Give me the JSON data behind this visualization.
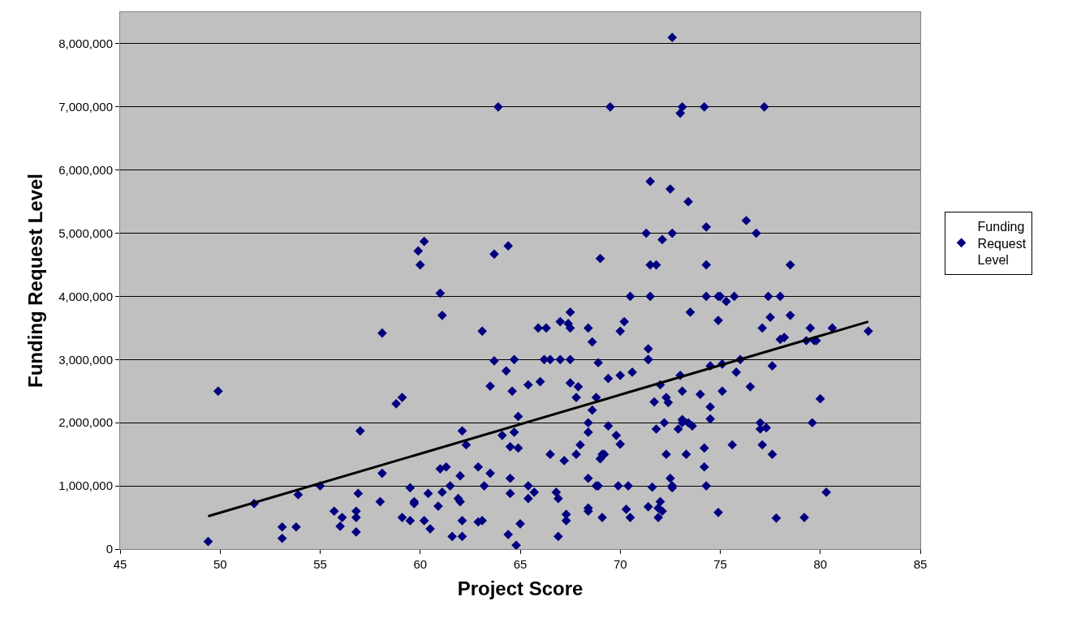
{
  "chart_data": {
    "type": "scatter",
    "xlabel": "Project Score",
    "ylabel": "Funding Request Level",
    "xlim": [
      45,
      85
    ],
    "xticks": [
      45,
      50,
      55,
      60,
      65,
      70,
      75,
      80,
      85
    ],
    "ylim": [
      0,
      8500000
    ],
    "yticks": [
      {
        "value": 0,
        "label": "0"
      },
      {
        "value": 1000000,
        "label": "1,000,000"
      },
      {
        "value": 2000000,
        "label": "2,000,000"
      },
      {
        "value": 3000000,
        "label": "3,000,000"
      },
      {
        "value": 4000000,
        "label": "4,000,000"
      },
      {
        "value": 5000000,
        "label": "5,000,000"
      },
      {
        "value": 6000000,
        "label": "6,000,000"
      },
      {
        "value": 7000000,
        "label": "7,000,000"
      },
      {
        "value": 8000000,
        "label": "8,000,000"
      }
    ],
    "grid": "y",
    "legend": "right",
    "series": [
      {
        "name": "Funding Request Level",
        "color": "#000080",
        "marker": "diamond",
        "x": [
          49.4,
          49.9,
          51.7,
          53.1,
          53.1,
          53.8,
          53.9,
          55.0,
          55.7,
          56.1,
          56.0,
          56.8,
          56.8,
          56.8,
          56.9,
          57.0,
          58.0,
          58.1,
          58.1,
          58.8,
          59.1,
          59.1,
          59.5,
          59.5,
          59.7,
          59.7,
          59.9,
          60.0,
          60.2,
          60.2,
          60.4,
          60.5,
          60.9,
          61.0,
          61.1,
          61.0,
          61.1,
          61.3,
          61.5,
          61.6,
          61.9,
          62.0,
          62.0,
          62.1,
          62.1,
          62.1,
          62.3,
          62.9,
          62.9,
          63.1,
          63.1,
          63.2,
          63.5,
          63.5,
          63.7,
          63.7,
          63.9,
          64.1,
          64.3,
          64.4,
          64.4,
          64.5,
          64.5,
          64.5,
          64.6,
          64.7,
          64.7,
          64.8,
          64.9,
          64.9,
          65.0,
          65.4,
          65.4,
          65.4,
          65.7,
          65.9,
          66.0,
          66.2,
          66.3,
          66.5,
          66.5,
          66.8,
          66.9,
          66.9,
          67.0,
          67.0,
          67.2,
          67.3,
          67.3,
          67.4,
          67.5,
          67.5,
          67.5,
          67.5,
          67.8,
          67.8,
          67.9,
          68.0,
          68.4,
          68.4,
          68.4,
          68.4,
          68.4,
          68.4,
          68.6,
          68.6,
          68.8,
          68.8,
          68.9,
          68.9,
          69.0,
          69.0,
          69.1,
          69.1,
          69.2,
          69.4,
          69.4,
          69.5,
          69.8,
          69.9,
          70.0,
          70.0,
          70.0,
          70.2,
          70.3,
          70.4,
          70.5,
          70.5,
          70.6,
          71.3,
          71.4,
          71.4,
          71.4,
          71.4,
          71.5,
          71.5,
          71.5,
          71.6,
          71.7,
          71.8,
          71.8,
          71.9,
          71.9,
          72.0,
          72.0,
          72.1,
          72.1,
          72.2,
          72.3,
          72.3,
          72.4,
          72.5,
          72.5,
          72.6,
          72.6,
          72.6,
          72.6,
          72.9,
          73.0,
          73.0,
          73.1,
          73.1,
          73.1,
          73.1,
          73.3,
          73.4,
          73.4,
          73.5,
          73.6,
          74.0,
          74.2,
          74.2,
          74.2,
          74.3,
          74.3,
          74.3,
          74.3,
          74.5,
          74.5,
          74.5,
          74.9,
          74.9,
          74.9,
          75.0,
          75.1,
          75.1,
          75.3,
          75.6,
          75.7,
          75.8,
          76.0,
          76.3,
          76.5,
          76.8,
          77.0,
          77.0,
          77.1,
          77.1,
          77.2,
          77.3,
          77.4,
          77.5,
          77.6,
          77.6,
          77.8,
          78.0,
          78.0,
          78.2,
          78.5,
          78.5,
          79.2,
          79.3,
          79.5,
          79.6,
          79.7,
          79.8,
          80.0,
          80.3,
          80.6,
          82.4
        ],
        "values": [
          120000,
          2500000,
          720000,
          350000,
          170000,
          350000,
          860000,
          1000000,
          600000,
          500000,
          360000,
          600000,
          500000,
          270000,
          880000,
          1870000,
          750000,
          1200000,
          3420000,
          2300000,
          2400000,
          500000,
          450000,
          970000,
          720000,
          750000,
          4720000,
          4500000,
          4870000,
          450000,
          880000,
          320000,
          680000,
          4050000,
          3700000,
          1270000,
          900000,
          1300000,
          1000000,
          200000,
          800000,
          750000,
          1160000,
          1870000,
          450000,
          200000,
          1650000,
          1300000,
          430000,
          450000,
          3450000,
          1000000,
          2580000,
          1200000,
          4670000,
          2980000,
          7000000,
          1800000,
          2820000,
          4800000,
          230000,
          1620000,
          1120000,
          880000,
          2500000,
          3000000,
          1850000,
          60000,
          2100000,
          1600000,
          400000,
          800000,
          1000000,
          2600000,
          900000,
          3500000,
          2650000,
          3000000,
          3500000,
          3000000,
          1500000,
          900000,
          800000,
          200000,
          3000000,
          3600000,
          1400000,
          550000,
          450000,
          3570000,
          3750000,
          3500000,
          3000000,
          2630000,
          2400000,
          1500000,
          2570000,
          1650000,
          3500000,
          2000000,
          1850000,
          1120000,
          650000,
          600000,
          2200000,
          3280000,
          2400000,
          1000000,
          2950000,
          1000000,
          1430000,
          4600000,
          1500000,
          500000,
          1500000,
          2700000,
          1950000,
          7000000,
          1800000,
          1000000,
          3450000,
          2750000,
          1660000,
          3600000,
          630000,
          1000000,
          4000000,
          500000,
          2800000,
          5000000,
          3000000,
          670000,
          3000000,
          3170000,
          5820000,
          4500000,
          4000000,
          980000,
          2330000,
          4500000,
          1900000,
          650000,
          500000,
          2600000,
          750000,
          4900000,
          600000,
          2000000,
          2400000,
          1500000,
          2320000,
          5700000,
          1120000,
          1000000,
          970000,
          5000000,
          8100000,
          1900000,
          6900000,
          2750000,
          7000000,
          2500000,
          2050000,
          2000000,
          1500000,
          2000000,
          5500000,
          3750000,
          1950000,
          2450000,
          7000000,
          1600000,
          1300000,
          4000000,
          5100000,
          4500000,
          1000000,
          2900000,
          2250000,
          2060000,
          4000000,
          3620000,
          580000,
          4000000,
          2930000,
          2500000,
          3920000,
          1650000,
          4000000,
          2800000,
          3000000,
          5200000,
          2570000,
          5000000,
          2000000,
          1900000,
          3500000,
          1650000,
          7000000,
          1920000,
          4000000,
          3670000,
          2900000,
          1500000,
          490000,
          3320000,
          4000000,
          3350000,
          4500000,
          3700000,
          500000,
          3300000,
          3500000,
          2000000,
          3300000,
          3300000,
          2380000,
          900000,
          3500000,
          3450000
        ]
      },
      {
        "type": "line",
        "marker": "none",
        "color": "#000000",
        "x": [
          49.4,
          82.4
        ],
        "values": [
          520000,
          3600000
        ]
      }
    ]
  }
}
